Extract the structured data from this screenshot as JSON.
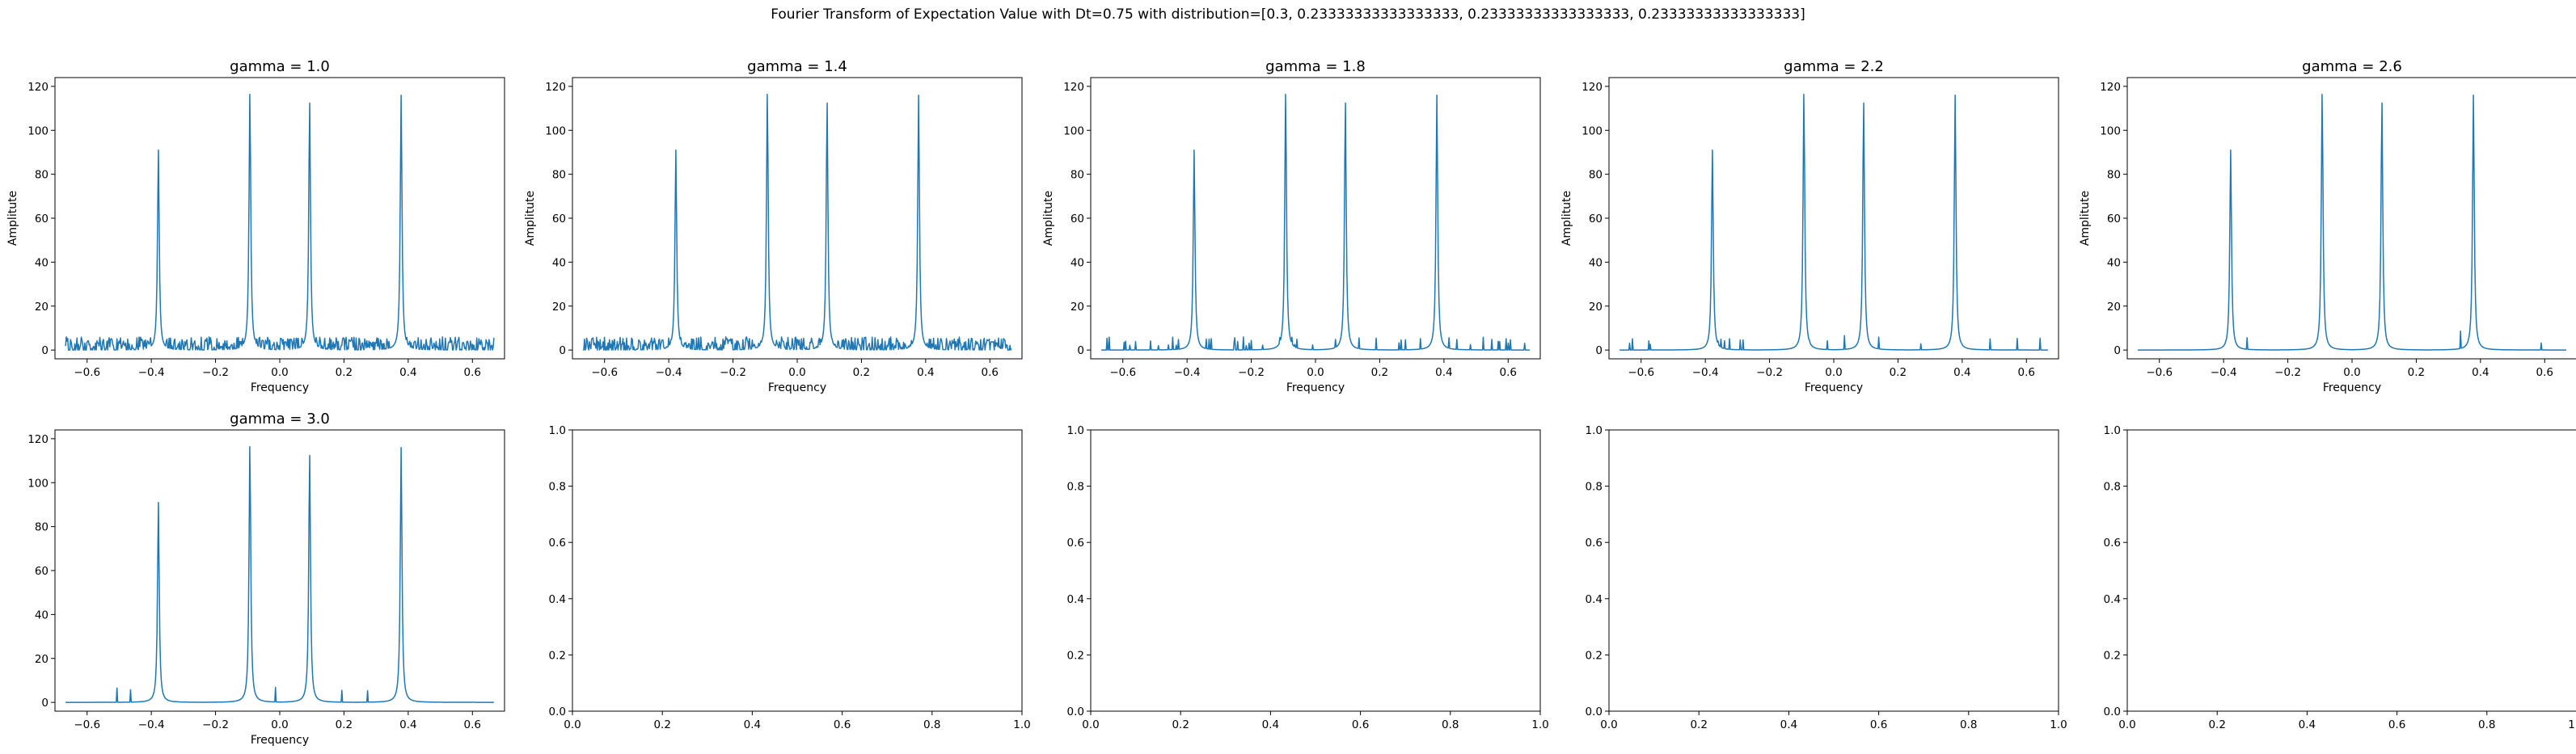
{
  "figure": {
    "suptitle": "Fourier Transform of Expectation Value with Dt=0.75 with distribution=[0.3, 0.23333333333333333, 0.23333333333333333, 0.23333333333333333]"
  },
  "chart_data": [
    {
      "type": "line",
      "title": "gamma = 1.0",
      "xlabel": "Frequency",
      "ylabel": "Amplitute",
      "xlim": [
        -0.7,
        0.7
      ],
      "ylim": [
        -4,
        124
      ],
      "xticks": [
        "−0.6",
        "−0.4",
        "−0.2",
        "0.0",
        "0.2",
        "0.4",
        "0.6"
      ],
      "yticks": [
        "0",
        "20",
        "40",
        "60",
        "80",
        "100",
        "120"
      ],
      "series": [
        {
          "color": "#1f77b4",
          "x_range": [
            -0.667,
            0.667
          ],
          "peaks": [
            {
              "x": -0.378,
              "y": 91
            },
            {
              "x": -0.093,
              "y": 118
            },
            {
              "x": 0.093,
              "y": 114
            },
            {
              "x": 0.378,
              "y": 116
            }
          ],
          "noise_level": 6
        }
      ]
    },
    {
      "type": "line",
      "title": "gamma = 1.4",
      "xlabel": "Frequency",
      "ylabel": "Amplitute",
      "xlim": [
        -0.7,
        0.7
      ],
      "ylim": [
        -4,
        124
      ],
      "xticks": [
        "−0.6",
        "−0.4",
        "−0.2",
        "0.0",
        "0.2",
        "0.4",
        "0.6"
      ],
      "yticks": [
        "0",
        "20",
        "40",
        "60",
        "80",
        "100",
        "120"
      ],
      "series": [
        {
          "color": "#1f77b4",
          "x_range": [
            -0.667,
            0.667
          ],
          "peaks": [
            {
              "x": -0.378,
              "y": 91
            },
            {
              "x": -0.093,
              "y": 118
            },
            {
              "x": 0.093,
              "y": 114
            },
            {
              "x": 0.378,
              "y": 116
            }
          ],
          "noise_level": 6
        }
      ]
    },
    {
      "type": "line",
      "title": "gamma = 1.8",
      "xlabel": "Frequency",
      "ylabel": "Amplitute",
      "xlim": [
        -0.7,
        0.7
      ],
      "ylim": [
        -4,
        124
      ],
      "xticks": [
        "−0.6",
        "−0.4",
        "−0.2",
        "0.0",
        "0.2",
        "0.4",
        "0.6"
      ],
      "yticks": [
        "0",
        "20",
        "40",
        "60",
        "80",
        "100",
        "120"
      ],
      "series": [
        {
          "color": "#1f77b4",
          "x_range": [
            -0.667,
            0.667
          ],
          "peaks": [
            {
              "x": -0.378,
              "y": 91
            },
            {
              "x": -0.093,
              "y": 118
            },
            {
              "x": 0.093,
              "y": 114
            },
            {
              "x": 0.378,
              "y": 116
            }
          ],
          "noise_level": 6
        }
      ]
    },
    {
      "type": "line",
      "title": "gamma = 2.2",
      "xlabel": "Frequency",
      "ylabel": "Amplitute",
      "xlim": [
        -0.7,
        0.7
      ],
      "ylim": [
        -4,
        124
      ],
      "xticks": [
        "−0.6",
        "−0.4",
        "−0.2",
        "0.0",
        "0.2",
        "0.4",
        "0.6"
      ],
      "yticks": [
        "0",
        "20",
        "40",
        "60",
        "80",
        "100",
        "120"
      ],
      "series": [
        {
          "color": "#1f77b4",
          "x_range": [
            -0.667,
            0.667
          ],
          "peaks": [
            {
              "x": -0.378,
              "y": 91
            },
            {
              "x": -0.093,
              "y": 118
            },
            {
              "x": 0.093,
              "y": 114
            },
            {
              "x": 0.378,
              "y": 116
            }
          ],
          "noise_level": 7
        }
      ]
    },
    {
      "type": "line",
      "title": "gamma = 2.6",
      "xlabel": "Frequency",
      "ylabel": "Amplitute",
      "xlim": [
        -0.7,
        0.7
      ],
      "ylim": [
        -4,
        124
      ],
      "xticks": [
        "−0.6",
        "−0.4",
        "−0.2",
        "0.0",
        "0.2",
        "0.4",
        "0.6"
      ],
      "yticks": [
        "0",
        "20",
        "40",
        "60",
        "80",
        "100",
        "120"
      ],
      "series": [
        {
          "color": "#1f77b4",
          "x_range": [
            -0.667,
            0.667
          ],
          "peaks": [
            {
              "x": -0.378,
              "y": 91
            },
            {
              "x": -0.093,
              "y": 118
            },
            {
              "x": 0.093,
              "y": 114
            },
            {
              "x": 0.378,
              "y": 116
            }
          ],
          "noise_level": 9
        }
      ]
    },
    {
      "type": "line",
      "title": "gamma = 3.0",
      "xlabel": "Frequency",
      "ylabel": "",
      "xlim": [
        -0.7,
        0.7
      ],
      "ylim": [
        -4,
        124
      ],
      "xticks": [
        "−0.6",
        "−0.4",
        "−0.2",
        "0.0",
        "0.2",
        "0.4",
        "0.6"
      ],
      "yticks": [
        "0",
        "20",
        "40",
        "60",
        "80",
        "100",
        "120"
      ],
      "series": [
        {
          "color": "#1f77b4",
          "x_range": [
            -0.667,
            0.667
          ],
          "peaks": [
            {
              "x": -0.378,
              "y": 91
            },
            {
              "x": -0.093,
              "y": 118
            },
            {
              "x": 0.093,
              "y": 114
            },
            {
              "x": 0.378,
              "y": 116
            }
          ],
          "noise_level": 9
        }
      ]
    },
    {
      "type": "line",
      "title": "",
      "xlabel": "",
      "ylabel": "",
      "xlim": [
        0,
        1
      ],
      "ylim": [
        0,
        1
      ],
      "xticks": [
        "0.0",
        "0.2",
        "0.4",
        "0.6",
        "0.8",
        "1.0"
      ],
      "yticks": [
        "0.0",
        "0.2",
        "0.4",
        "0.6",
        "0.8",
        "1.0"
      ],
      "series": []
    },
    {
      "type": "line",
      "title": "",
      "xlabel": "",
      "ylabel": "",
      "xlim": [
        0,
        1
      ],
      "ylim": [
        0,
        1
      ],
      "xticks": [
        "0.0",
        "0.2",
        "0.4",
        "0.6",
        "0.8",
        "1.0"
      ],
      "yticks": [
        "0.0",
        "0.2",
        "0.4",
        "0.6",
        "0.8",
        "1.0"
      ],
      "series": []
    },
    {
      "type": "line",
      "title": "",
      "xlabel": "",
      "ylabel": "",
      "xlim": [
        0,
        1
      ],
      "ylim": [
        0,
        1
      ],
      "xticks": [
        "0.0",
        "0.2",
        "0.4",
        "0.6",
        "0.8",
        "1.0"
      ],
      "yticks": [
        "0.0",
        "0.2",
        "0.4",
        "0.6",
        "0.8",
        "1.0"
      ],
      "series": []
    },
    {
      "type": "line",
      "title": "",
      "xlabel": "",
      "ylabel": "",
      "xlim": [
        0,
        1
      ],
      "ylim": [
        0,
        1
      ],
      "xticks": [
        "0.0",
        "0.2",
        "0.4",
        "0.6",
        "0.8",
        "1.0"
      ],
      "yticks": [
        "0.0",
        "0.2",
        "0.4",
        "0.6",
        "0.8",
        "1.0"
      ],
      "series": []
    }
  ]
}
